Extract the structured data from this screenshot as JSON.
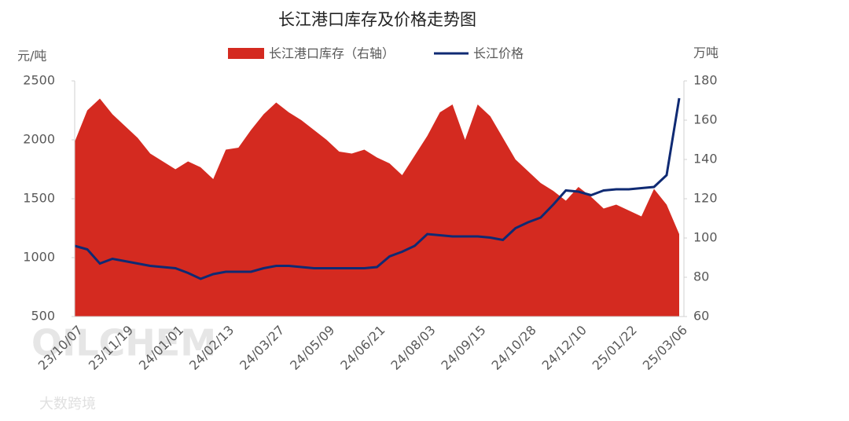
{
  "chart_data": {
    "type": "area_line",
    "title": "长江港口库存及价格走势图",
    "ylabel": "元/吨",
    "y2label": "万吨",
    "watermark": "OILCHEM",
    "watermark2": "大数跨境",
    "categories": [
      "23/10/07",
      null,
      null,
      null,
      "23/11/19",
      null,
      null,
      null,
      "24/01/01",
      null,
      null,
      null,
      "24/02/13",
      null,
      null,
      null,
      "24/03/27",
      null,
      null,
      null,
      "24/05/09",
      null,
      null,
      null,
      "24/06/21",
      null,
      null,
      null,
      "24/08/03",
      null,
      null,
      null,
      "24/09/15",
      null,
      null,
      null,
      "24/10/28",
      null,
      null,
      null,
      "24/12/10",
      null,
      null,
      null,
      "25/01/22",
      null,
      null,
      null,
      "25/03/06"
    ],
    "series": [
      {
        "name": "长江港口库存（右轴）",
        "color": "#d42a20",
        "axis": "y2",
        "values": [
          149,
          165,
          171,
          163,
          157,
          151,
          143,
          139,
          135,
          139,
          136,
          130,
          145,
          146,
          155,
          163,
          169,
          164,
          160,
          155,
          150,
          144,
          143,
          145,
          141,
          138,
          132,
          142,
          152,
          164,
          168,
          150,
          168,
          162,
          151,
          140,
          134,
          128,
          124,
          119,
          126,
          121,
          115,
          117,
          114,
          111,
          125,
          117,
          102
        ]
      },
      {
        "name": "长江价格",
        "color": "#0f2a73",
        "values": [
          1100,
          1070,
          950,
          990,
          970,
          950,
          930,
          920,
          910,
          870,
          820,
          860,
          880,
          880,
          880,
          910,
          930,
          930,
          920,
          910,
          910,
          910,
          910,
          910,
          920,
          1010,
          1050,
          1100,
          1200,
          1190,
          1180,
          1180,
          1180,
          1170,
          1150,
          1250,
          1300,
          1340,
          1450,
          1570,
          1560,
          1530,
          1570,
          1580,
          1580,
          1590,
          1600,
          1700,
          2353
        ]
      }
    ],
    "ylim": [
      500,
      2500
    ],
    "yticks": [
      500,
      1000,
      1500,
      2000,
      2500
    ],
    "y2lim": [
      60,
      180
    ],
    "y2ticks": [
      60,
      80,
      100,
      120,
      140,
      160,
      180
    ],
    "legend": "top"
  }
}
